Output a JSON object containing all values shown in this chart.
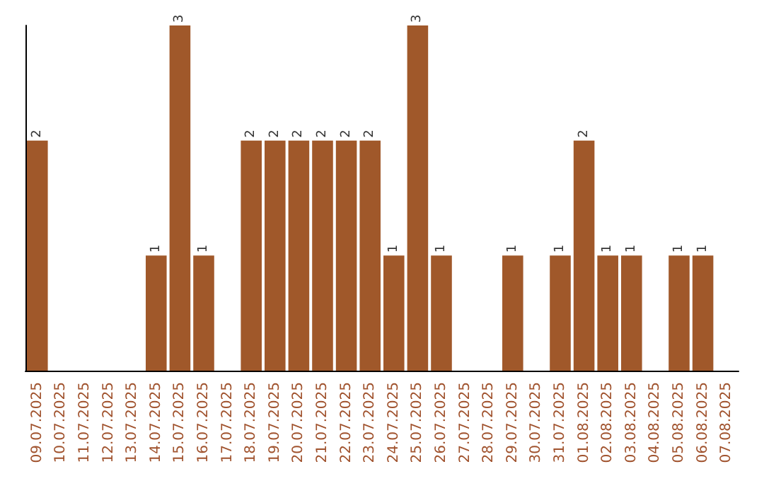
{
  "chart_data": {
    "type": "bar",
    "categories": [
      "09.07.2025",
      "10.07.2025",
      "11.07.2025",
      "12.07.2025",
      "13.07.2025",
      "14.07.2025",
      "15.07.2025",
      "16.07.2025",
      "17.07.2025",
      "18.07.2025",
      "19.07.2025",
      "20.07.2025",
      "21.07.2025",
      "22.07.2025",
      "23.07.2025",
      "24.07.2025",
      "25.07.2025",
      "26.07.2025",
      "27.07.2025",
      "28.07.2025",
      "29.07.2025",
      "30.07.2025",
      "31.07.2025",
      "01.08.2025",
      "02.08.2025",
      "03.08.2025",
      "04.08.2025",
      "05.08.2025",
      "06.08.2025",
      "07.08.2025"
    ],
    "values": [
      2,
      0,
      0,
      0,
      0,
      1,
      3,
      1,
      0,
      2,
      2,
      2,
      2,
      2,
      2,
      1,
      3,
      1,
      0,
      0,
      1,
      0,
      1,
      2,
      1,
      1,
      0,
      1,
      1,
      0
    ],
    "value_labels": [
      "2",
      null,
      null,
      null,
      null,
      "1",
      "3",
      "1",
      null,
      "2",
      "2",
      "2",
      "2",
      "2",
      "2",
      "1",
      "3",
      "1",
      null,
      null,
      "1",
      null,
      "1",
      "2",
      "1",
      "1",
      null,
      "1",
      "1",
      null
    ],
    "color": "#a0582a",
    "tick_labels": "x"
  }
}
